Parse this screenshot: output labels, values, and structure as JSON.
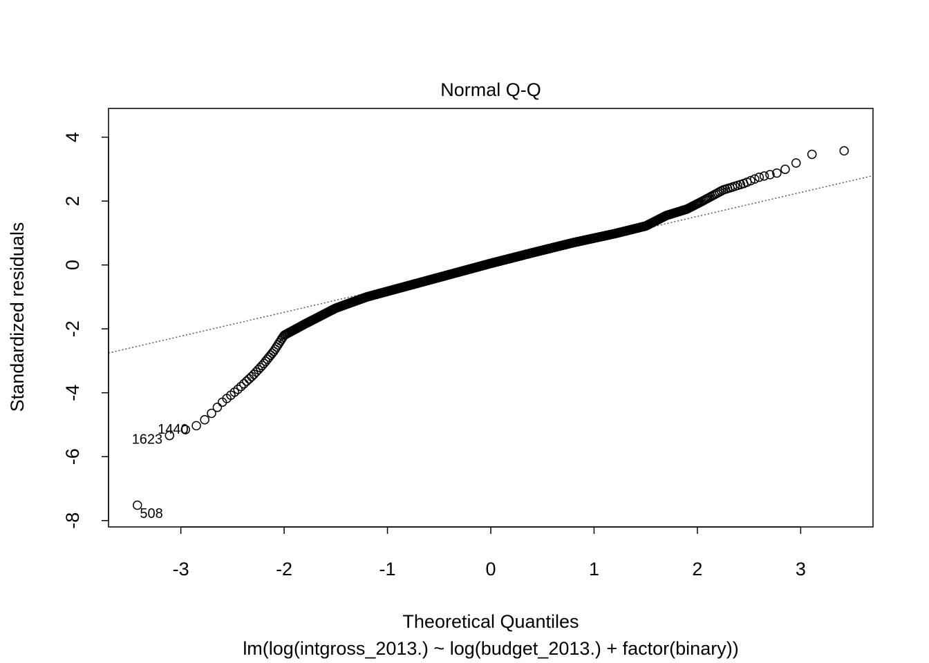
{
  "chart_data": {
    "type": "scatter",
    "title": "Normal Q-Q",
    "xlabel": "Theoretical Quantiles",
    "ylabel": "Standardized residuals",
    "subtitle": "lm(log(intgross_2013.) ~ log(budget_2013.) + factor(binary))",
    "xlim": [
      -3.7,
      3.7
    ],
    "ylim": [
      -8.2,
      4.9
    ],
    "x_ticks": [
      -3,
      -2,
      -1,
      0,
      1,
      2,
      3
    ],
    "y_ticks": [
      -8,
      -6,
      -4,
      -2,
      0,
      2,
      4
    ],
    "x_tick_labels": [
      "-3",
      "-2",
      "-1",
      "0",
      "1",
      "2",
      "3"
    ],
    "y_tick_labels": [
      "-8",
      "-6",
      "-4",
      "-2",
      "0",
      "2",
      "4"
    ],
    "grid": false,
    "reference_line": {
      "style": "dotted",
      "intercept": 0.02,
      "slope": 0.75
    },
    "labeled_points": [
      {
        "label": "508",
        "x": -3.45,
        "y": -7.75
      },
      {
        "label": "1623",
        "x": -3.15,
        "y": -5.4
      },
      {
        "label": "1440",
        "x": -3.02,
        "y": -5.2
      }
    ],
    "curve_knots": [
      [
        -3.45,
        -7.75
      ],
      [
        -3.15,
        -5.4
      ],
      [
        -3.02,
        -5.2
      ],
      [
        -2.88,
        -5.1
      ],
      [
        -2.75,
        -4.8
      ],
      [
        -2.6,
        -4.3
      ],
      [
        -2.45,
        -3.9
      ],
      [
        -2.3,
        -3.45
      ],
      [
        -2.2,
        -3.1
      ],
      [
        -2.1,
        -2.7
      ],
      [
        -2.0,
        -2.2
      ],
      [
        -1.8,
        -1.85
      ],
      [
        -1.5,
        -1.35
      ],
      [
        -1.2,
        -1.0
      ],
      [
        -0.8,
        -0.65
      ],
      [
        -0.4,
        -0.3
      ],
      [
        0.0,
        0.05
      ],
      [
        0.4,
        0.38
      ],
      [
        0.8,
        0.7
      ],
      [
        1.2,
        0.98
      ],
      [
        1.5,
        1.22
      ],
      [
        1.7,
        1.55
      ],
      [
        1.9,
        1.75
      ],
      [
        2.05,
        2.0
      ],
      [
        2.25,
        2.35
      ],
      [
        2.45,
        2.55
      ],
      [
        2.6,
        2.75
      ],
      [
        2.8,
        2.9
      ],
      [
        2.97,
        3.22
      ],
      [
        3.13,
        3.5
      ],
      [
        3.45,
        3.58
      ]
    ],
    "n_points": 1600
  }
}
